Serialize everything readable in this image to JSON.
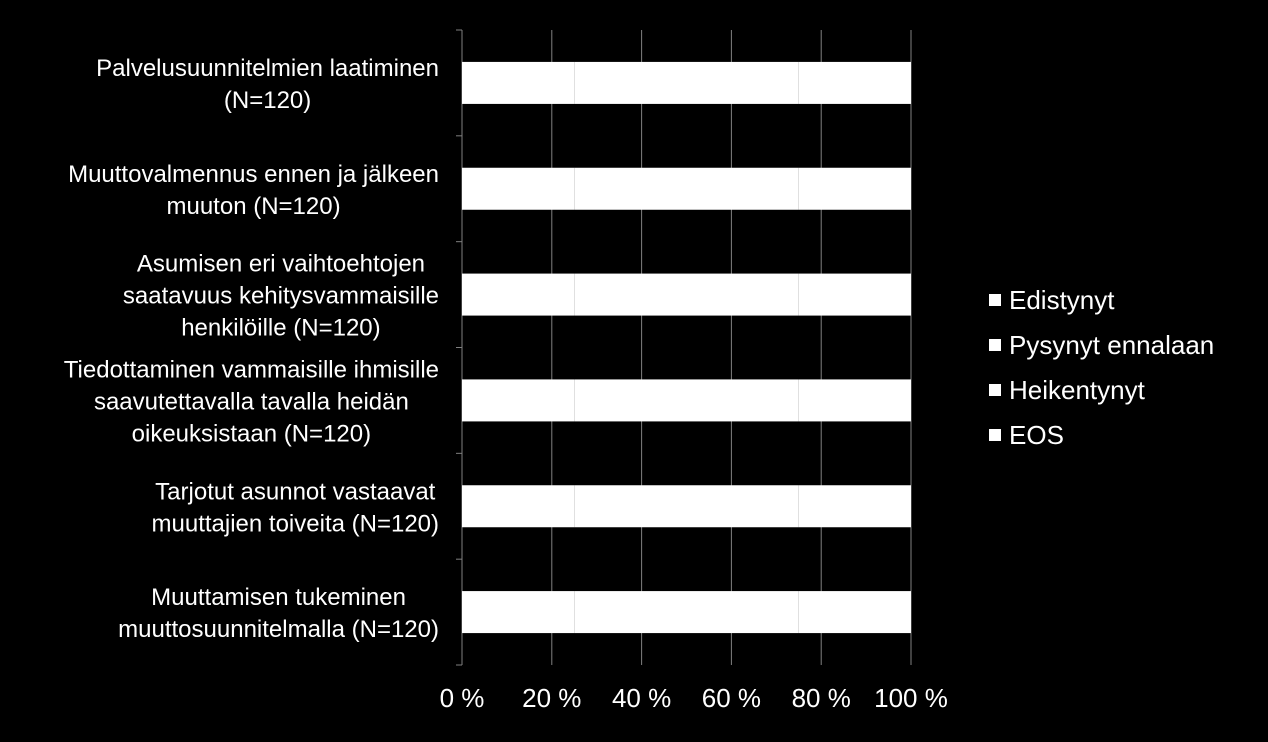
{
  "chart_data": {
    "type": "bar",
    "orientation": "horizontal",
    "stacked": true,
    "percent_stacked": true,
    "categories": [
      [
        "Palvelusuunnitelmien laatiminen",
        "(N=120)"
      ],
      [
        "Muuttovalmennus ennen ja jälkeen",
        "muuton (N=120)"
      ],
      [
        "Asumisen eri vaihtoehtojen",
        "saatavuus kehitysvammaisille",
        "henkilöille (N=120)"
      ],
      [
        "Tiedottaminen vammaisille ihmisille",
        "saavutettavalla tavalla heidän",
        "oikeuksistaan (N=120)"
      ],
      [
        "Tarjotut asunnot vastaavat",
        "muuttajien toiveita (N=120)"
      ],
      [
        "Muuttamisen tukeminen",
        "muuttosuunnitelmalla (N=120)"
      ]
    ],
    "series": [
      {
        "name": "Edistynyt",
        "color": "#ffffff",
        "values": [
          25,
          25,
          25,
          25,
          25,
          25
        ]
      },
      {
        "name": "Pysynyt ennalaan",
        "color": "#ffffff",
        "values": [
          25,
          25,
          25,
          25,
          25,
          25
        ]
      },
      {
        "name": "Heikentynyt",
        "color": "#ffffff",
        "values": [
          25,
          25,
          25,
          25,
          25,
          25
        ]
      },
      {
        "name": "EOS",
        "color": "#ffffff",
        "values": [
          25,
          25,
          25,
          25,
          25,
          25
        ]
      }
    ],
    "x_ticks": [
      "0 %",
      "20 %",
      "40 %",
      "60 %",
      "80 %",
      "100 %"
    ],
    "xlim": [
      0,
      100
    ],
    "grid": true,
    "legend_position": "right",
    "title": "",
    "xlabel": "",
    "ylabel": ""
  },
  "colors": {
    "background": "#000000",
    "bar": "#ffffff",
    "grid": "#808080",
    "text": "#ffffff"
  }
}
